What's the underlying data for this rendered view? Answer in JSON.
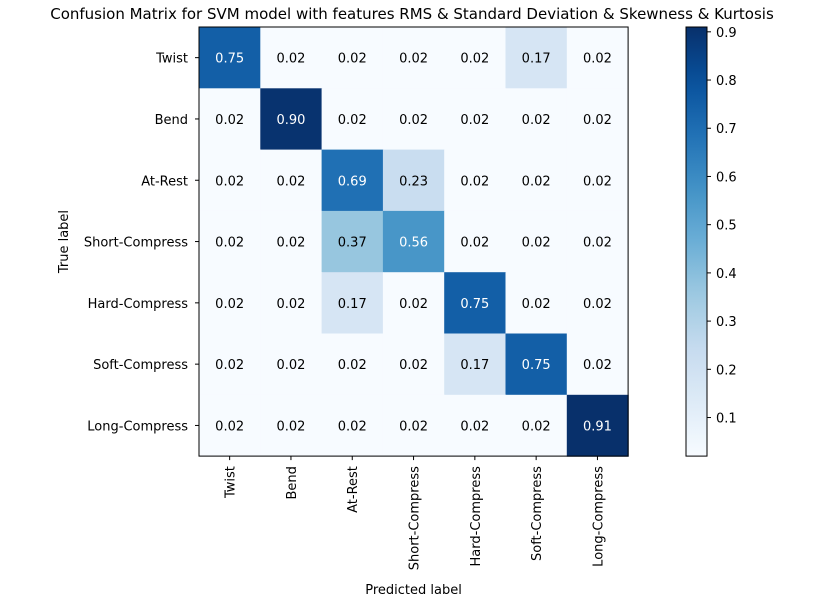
{
  "chart_data": {
    "type": "heatmap",
    "title": "Confusion Matrix for SVM model with features RMS & Standard Deviation & Skewness & Kurtosis",
    "xlabel": "Predicted label",
    "ylabel": "True label",
    "row_labels": [
      "Twist",
      "Bend",
      "At-Rest",
      "Short-Compress",
      "Hard-Compress",
      "Soft-Compress",
      "Long-Compress"
    ],
    "col_labels": [
      "Twist",
      "Bend",
      "At-Rest",
      "Short-Compress",
      "Hard-Compress",
      "Soft-Compress",
      "Long-Compress"
    ],
    "values": [
      [
        0.75,
        0.02,
        0.02,
        0.02,
        0.02,
        0.17,
        0.02
      ],
      [
        0.02,
        0.9,
        0.02,
        0.02,
        0.02,
        0.02,
        0.02
      ],
      [
        0.02,
        0.02,
        0.69,
        0.23,
        0.02,
        0.02,
        0.02
      ],
      [
        0.02,
        0.02,
        0.37,
        0.56,
        0.02,
        0.02,
        0.02
      ],
      [
        0.02,
        0.02,
        0.17,
        0.02,
        0.75,
        0.02,
        0.02
      ],
      [
        0.02,
        0.02,
        0.02,
        0.02,
        0.17,
        0.75,
        0.02
      ],
      [
        0.02,
        0.02,
        0.02,
        0.02,
        0.02,
        0.02,
        0.91
      ]
    ],
    "value_labels": [
      [
        "0.75",
        "0.02",
        "0.02",
        "0.02",
        "0.02",
        "0.17",
        "0.02"
      ],
      [
        "0.02",
        "0.90",
        "0.02",
        "0.02",
        "0.02",
        "0.02",
        "0.02"
      ],
      [
        "0.02",
        "0.02",
        "0.69",
        "0.23",
        "0.02",
        "0.02",
        "0.02"
      ],
      [
        "0.02",
        "0.02",
        "0.37",
        "0.56",
        "0.02",
        "0.02",
        "0.02"
      ],
      [
        "0.02",
        "0.02",
        "0.17",
        "0.02",
        "0.75",
        "0.02",
        "0.02"
      ],
      [
        "0.02",
        "0.02",
        "0.02",
        "0.02",
        "0.17",
        "0.75",
        "0.02"
      ],
      [
        "0.02",
        "0.02",
        "0.02",
        "0.02",
        "0.02",
        "0.02",
        "0.91"
      ]
    ],
    "colormap": "Blues",
    "colorbar": {
      "range": [
        0.02,
        0.91
      ],
      "ticks": [
        0.1,
        0.2,
        0.3,
        0.4,
        0.5,
        0.6,
        0.7,
        0.8,
        0.9
      ],
      "tick_labels": [
        "0.1",
        "0.2",
        "0.3",
        "0.4",
        "0.5",
        "0.6",
        "0.7",
        "0.8",
        "0.9"
      ]
    },
    "grid": false
  }
}
